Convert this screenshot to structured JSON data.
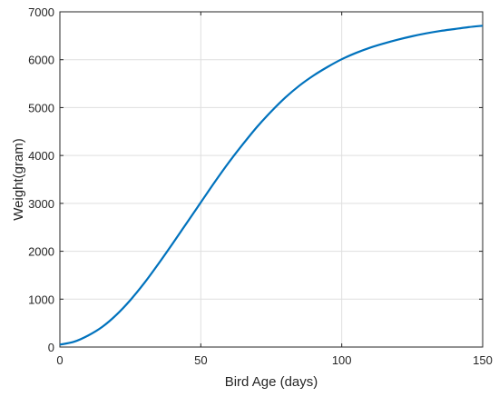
{
  "chart_data": {
    "type": "line",
    "title": "",
    "xlabel": "Bird Age (days)",
    "ylabel": "Weight(gram)",
    "xlim": [
      0,
      150
    ],
    "ylim": [
      0,
      7000
    ],
    "xticks": [
      0,
      50,
      100,
      150
    ],
    "yticks": [
      0,
      1000,
      2000,
      3000,
      4000,
      5000,
      6000,
      7000
    ],
    "grid": true,
    "legend": "none",
    "series": [
      {
        "color": "#0072bd",
        "x": [
          0,
          5,
          10,
          15,
          20,
          25,
          30,
          35,
          40,
          45,
          50,
          55,
          60,
          65,
          70,
          75,
          80,
          85,
          90,
          95,
          100,
          105,
          110,
          115,
          120,
          125,
          130,
          135,
          140,
          145,
          150
        ],
        "y": [
          50,
          110,
          240,
          420,
          670,
          980,
          1340,
          1740,
          2160,
          2590,
          3020,
          3450,
          3860,
          4240,
          4600,
          4920,
          5210,
          5460,
          5670,
          5850,
          6010,
          6140,
          6250,
          6340,
          6420,
          6490,
          6550,
          6600,
          6640,
          6680,
          6710
        ]
      }
    ]
  }
}
